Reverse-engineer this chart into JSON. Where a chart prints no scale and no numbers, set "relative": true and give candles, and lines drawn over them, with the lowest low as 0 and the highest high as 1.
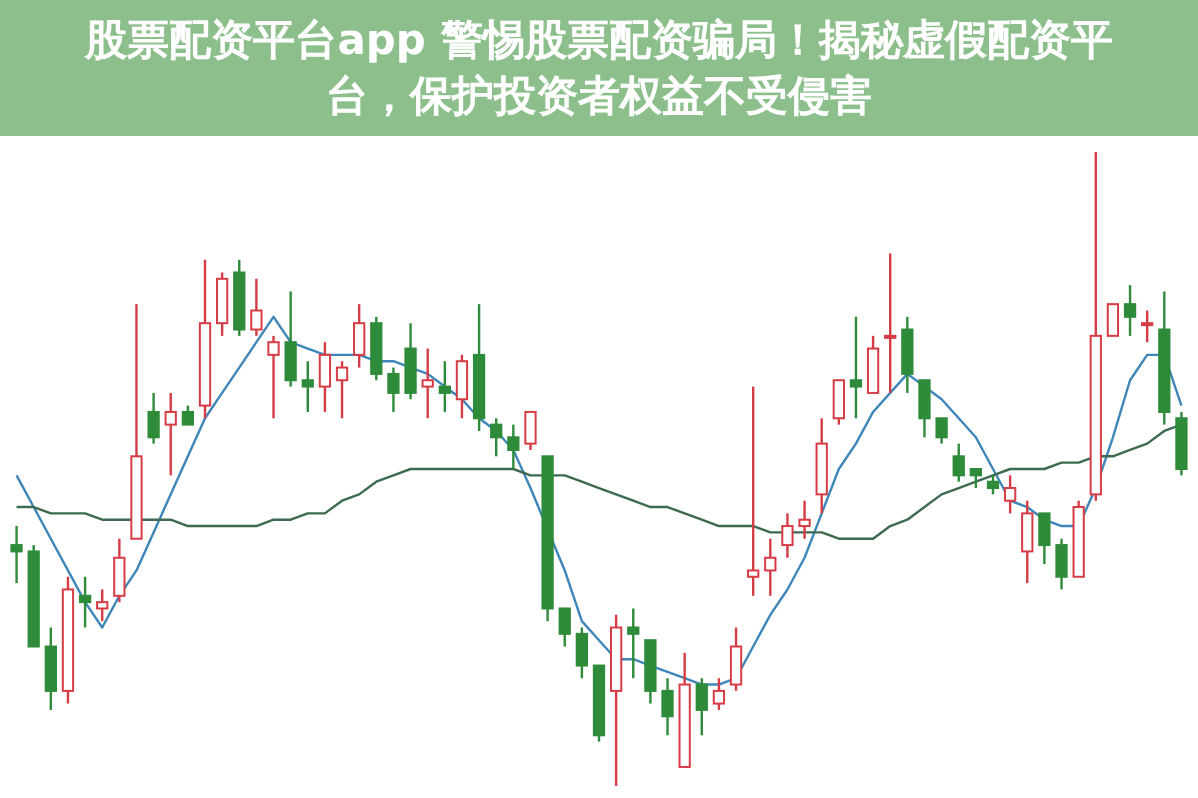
{
  "chart_data": {
    "type": "candlestick",
    "title": "股票配资平台app 警惕股票配资骗局！揭秘虚假配资平台，保护投资者权益不受侵害",
    "relative": true,
    "categories": [
      null,
      null,
      null,
      null,
      null,
      null,
      null,
      null,
      null,
      null,
      null,
      null,
      null,
      null,
      null,
      null,
      null,
      null,
      null,
      null,
      null,
      null,
      null,
      null,
      null,
      null,
      null,
      null,
      null,
      null,
      null,
      null,
      null,
      null,
      null,
      null,
      null,
      null,
      null,
      null,
      null,
      null,
      null,
      null,
      null,
      null,
      null,
      null,
      null,
      null,
      null,
      null,
      null,
      null,
      null,
      null,
      null,
      null,
      null,
      null,
      null,
      null,
      null,
      null,
      null,
      null,
      null,
      null,
      null
    ],
    "ohlc": [
      [
        0.38,
        0.41,
        0.32,
        0.37
      ],
      [
        0.37,
        0.38,
        0.22,
        0.22
      ],
      [
        0.22,
        0.25,
        0.12,
        0.15
      ],
      [
        0.15,
        0.33,
        0.13,
        0.31
      ],
      [
        0.3,
        0.33,
        0.25,
        0.29
      ],
      [
        0.28,
        0.31,
        0.26,
        0.29
      ],
      [
        0.3,
        0.39,
        0.29,
        0.36
      ],
      [
        0.39,
        0.76,
        0.39,
        0.52
      ],
      [
        0.59,
        0.62,
        0.54,
        0.55
      ],
      [
        0.57,
        0.62,
        0.49,
        0.59
      ],
      [
        0.59,
        0.6,
        0.57,
        0.57
      ],
      [
        0.6,
        0.83,
        0.58,
        0.73
      ],
      [
        0.73,
        0.81,
        0.71,
        0.8
      ],
      [
        0.81,
        0.83,
        0.71,
        0.72
      ],
      [
        0.72,
        0.8,
        0.71,
        0.75
      ],
      [
        0.68,
        0.71,
        0.58,
        0.7
      ],
      [
        0.7,
        0.78,
        0.63,
        0.64
      ],
      [
        0.64,
        0.67,
        0.59,
        0.63
      ],
      [
        0.63,
        0.7,
        0.59,
        0.68
      ],
      [
        0.64,
        0.67,
        0.58,
        0.66
      ],
      [
        0.68,
        0.76,
        0.66,
        0.73
      ],
      [
        0.73,
        0.74,
        0.64,
        0.65
      ],
      [
        0.65,
        0.66,
        0.59,
        0.62
      ],
      [
        0.69,
        0.73,
        0.61,
        0.62
      ],
      [
        0.63,
        0.69,
        0.58,
        0.64
      ],
      [
        0.63,
        0.67,
        0.59,
        0.62
      ],
      [
        0.61,
        0.68,
        0.58,
        0.67
      ],
      [
        0.68,
        0.76,
        0.56,
        0.58
      ],
      [
        0.57,
        0.58,
        0.52,
        0.55
      ],
      [
        0.55,
        0.57,
        0.5,
        0.53
      ],
      [
        0.54,
        0.59,
        0.53,
        0.59
      ],
      [
        0.52,
        0.52,
        0.26,
        0.28
      ],
      [
        0.28,
        0.28,
        0.22,
        0.24
      ],
      [
        0.24,
        0.25,
        0.17,
        0.19
      ],
      [
        0.19,
        0.19,
        0.07,
        0.08
      ],
      [
        0.15,
        0.27,
        0,
        0.25
      ],
      [
        0.25,
        0.28,
        0.17,
        0.24
      ],
      [
        0.23,
        0.23,
        0.13,
        0.15
      ],
      [
        0.15,
        0.17,
        0.08,
        0.11
      ],
      [
        0.03,
        0.21,
        0.03,
        0.16
      ],
      [
        0.16,
        0.17,
        0.08,
        0.12
      ],
      [
        0.13,
        0.17,
        0.12,
        0.15
      ],
      [
        0.16,
        0.25,
        0.15,
        0.22
      ],
      [
        0.33,
        0.63,
        0.3,
        0.34
      ],
      [
        0.34,
        0.39,
        0.3,
        0.36
      ],
      [
        0.38,
        0.43,
        0.36,
        0.41
      ],
      [
        0.41,
        0.45,
        0.39,
        0.42
      ],
      [
        0.46,
        0.58,
        0.43,
        0.54
      ],
      [
        0.58,
        0.64,
        0.57,
        0.64
      ],
      [
        0.64,
        0.74,
        0.58,
        0.63
      ],
      [
        0.62,
        0.71,
        0.62,
        0.69
      ],
      [
        0.71,
        0.84,
        0.62,
        0.71
      ],
      [
        0.72,
        0.74,
        0.62,
        0.65
      ],
      [
        0.64,
        0.64,
        0.55,
        0.58
      ],
      [
        0.58,
        0.58,
        0.54,
        0.55
      ],
      [
        0.52,
        0.54,
        0.48,
        0.49
      ],
      [
        0.5,
        0.5,
        0.47,
        0.49
      ],
      [
        0.48,
        0.49,
        0.46,
        0.47
      ],
      [
        0.45,
        0.49,
        0.43,
        0.47
      ],
      [
        0.37,
        0.45,
        0.32,
        0.43
      ],
      [
        0.43,
        0.43,
        0.35,
        0.38
      ],
      [
        0.38,
        0.39,
        0.31,
        0.33
      ],
      [
        0.33,
        0.45,
        0.33,
        0.44
      ],
      [
        0.46,
        1,
        0.45,
        0.71
      ],
      [
        0.71,
        0.76,
        0.71,
        0.76
      ],
      [
        0.76,
        0.79,
        0.71,
        0.74
      ],
      [
        0.73,
        0.75,
        0.7,
        0.73
      ],
      [
        0.72,
        0.78,
        0.57,
        0.59
      ],
      [
        0.58,
        0.59,
        0.49,
        0.5
      ]
    ],
    "series": [
      {
        "type": "line",
        "color": "#3f86b8",
        "values": [
          0.49,
          0.44,
          0.39,
          0.34,
          0.29,
          0.25,
          0.3,
          0.34,
          0.4,
          0.46,
          0.52,
          0.58,
          0.62,
          0.66,
          0.7,
          0.74,
          0.7,
          0.69,
          0.68,
          0.68,
          0.68,
          0.67,
          0.67,
          0.66,
          0.65,
          0.63,
          0.61,
          0.58,
          0.56,
          0.53,
          0.47,
          null,
          0.34,
          0.26,
          0.23,
          0.2,
          0.2,
          0.19,
          0.18,
          0.17,
          0.16,
          0.16,
          0.17,
          0.22,
          0.27,
          0.31,
          0.36,
          0.43,
          0.5,
          0.54,
          0.59,
          0.62,
          0.65,
          0.63,
          0.61,
          0.58,
          0.55,
          0.5,
          0.45,
          0.44,
          0.42,
          0.41,
          0.41,
          0.47,
          0.55,
          0.64,
          0.68,
          0.68,
          0.6
        ]
      },
      {
        "type": "line",
        "color": "#3d6b4f",
        "values": [
          0.44,
          0.44,
          0.43,
          0.43,
          0.43,
          0.42,
          0.42,
          0.42,
          0.42,
          0.42,
          0.41,
          0.41,
          0.41,
          0.41,
          0.41,
          0.42,
          0.42,
          0.43,
          0.43,
          0.45,
          0.46,
          0.48,
          0.49,
          0.5,
          0.5,
          0.5,
          0.5,
          0.5,
          0.5,
          0.5,
          0.49,
          0.49,
          0.49,
          0.48,
          0.47,
          0.46,
          0.45,
          0.44,
          0.44,
          0.43,
          0.42,
          0.41,
          0.41,
          0.41,
          0.4,
          0.4,
          0.4,
          0.4,
          0.39,
          0.39,
          0.39,
          0.41,
          0.42,
          0.44,
          0.46,
          0.47,
          0.48,
          0.49,
          0.5,
          0.5,
          0.5,
          0.51,
          0.51,
          0.52,
          0.52,
          0.53,
          0.54,
          0.56,
          0.57
        ]
      }
    ]
  }
}
